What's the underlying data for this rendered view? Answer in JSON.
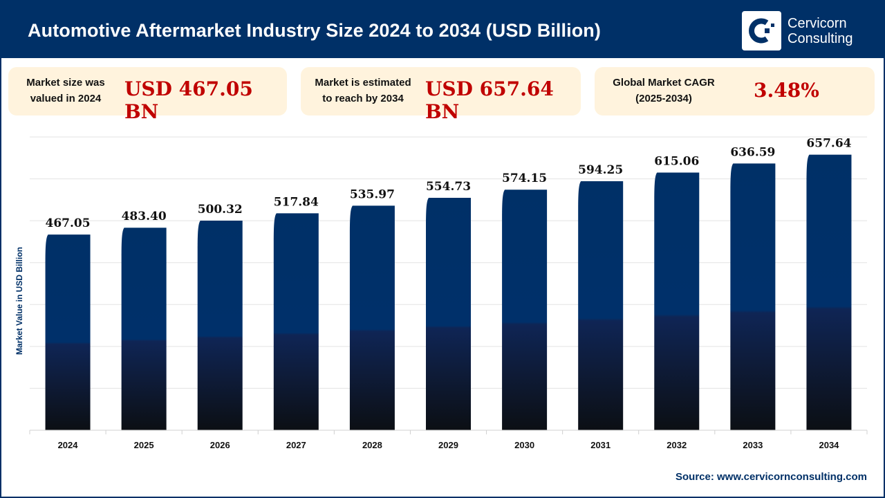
{
  "header": {
    "title": "Automotive Aftermarket Industry Size 2024 to 2034 (USD Billion)",
    "logo_line1": "Cervicorn",
    "logo_line2": "Consulting",
    "logo_icon": "cervicorn-logo-icon"
  },
  "cards": [
    {
      "label_line1": "Market size was",
      "label_line2": "valued in 2024",
      "value": "USD 467.05 BN"
    },
    {
      "label_line1": "Market is estimated",
      "label_line2": "to reach by 2034",
      "value": "USD 657.64 BN"
    },
    {
      "label_line1": "Global Market CAGR",
      "label_line2": "(2025-2034)",
      "value": "3.48%"
    }
  ],
  "colors": {
    "brand_navy": "#003067",
    "accent_red": "#c00000",
    "card_bg": "#fff3dd",
    "bar_top": "#003067",
    "bar_bottom": "#0c0f14"
  },
  "chart_data": {
    "type": "bar",
    "title": "Automotive Aftermarket Industry Size 2024 to 2034 (USD Billion)",
    "xlabel": "",
    "ylabel": "Market Value in USD Billion",
    "categories": [
      "2024",
      "2025",
      "2026",
      "2027",
      "2028",
      "2029",
      "2030",
      "2031",
      "2032",
      "2033",
      "2034"
    ],
    "values": [
      467.05,
      483.4,
      500.32,
      517.84,
      535.97,
      554.73,
      574.15,
      594.25,
      615.06,
      636.59,
      657.64
    ],
    "value_labels": [
      "467.05",
      "483.40",
      "500.32",
      "517.84",
      "535.97",
      "554.73",
      "574.15",
      "594.25",
      "615.06",
      "636.59",
      "657.64"
    ],
    "ylim": [
      0,
      700
    ],
    "grid": true,
    "grid_step": 100,
    "y_tick_labels_shown": false,
    "legend": "none"
  },
  "footer": {
    "source": "Source: www.cervicornconsulting.com"
  }
}
